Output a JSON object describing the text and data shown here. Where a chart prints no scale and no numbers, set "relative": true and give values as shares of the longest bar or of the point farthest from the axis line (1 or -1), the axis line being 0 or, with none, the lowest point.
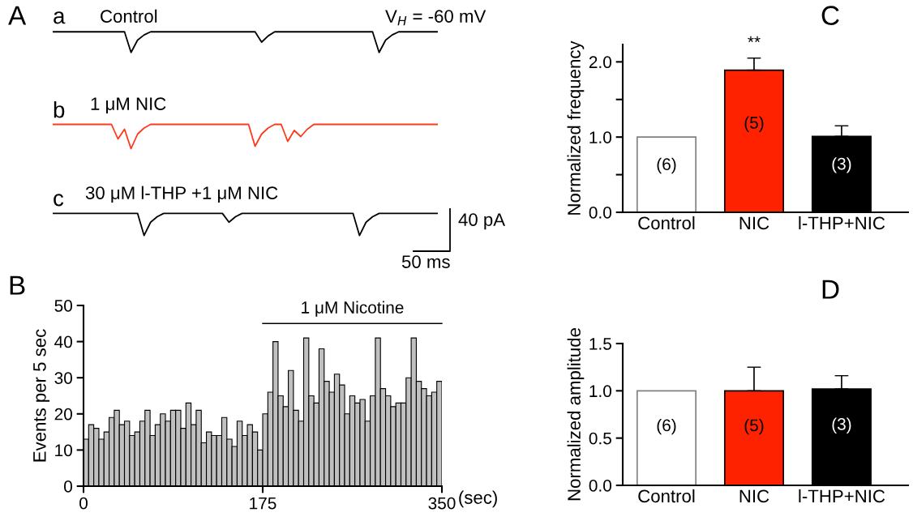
{
  "chart_data": [
    {
      "type": "other",
      "title": "A",
      "annotations": [
        "a",
        "Control",
        "V$_{H}$ = -60 mV",
        "b",
        "1 μM NIC",
        "c",
        "30 μM l-THP +1 μM NIC",
        "40 pA",
        "50 ms"
      ]
    },
    {
      "type": "line",
      "relative": true,
      "color": "#000000",
      "categories": [
        null,
        null,
        null,
        null,
        null,
        null,
        null,
        null,
        null,
        null,
        null,
        null,
        null,
        null,
        null,
        null,
        null,
        null,
        null,
        null,
        null,
        null,
        null,
        null,
        null,
        null,
        null,
        null,
        null,
        null,
        null,
        null,
        null,
        null,
        null,
        null,
        null,
        null,
        null,
        null,
        null,
        null,
        null,
        null,
        null,
        null,
        null,
        null,
        null,
        null,
        null,
        null,
        null,
        null,
        null,
        null,
        null,
        null,
        null,
        null
      ],
      "values": [
        1,
        1,
        1,
        1,
        1,
        1,
        1,
        1,
        1,
        1,
        1,
        1,
        0,
        0.6,
        0.85,
        1,
        1,
        1,
        1,
        1,
        1,
        1,
        1,
        1,
        1,
        1,
        1,
        1,
        1,
        1,
        1,
        1,
        0.5,
        0.8,
        1,
        1,
        1,
        1,
        1,
        1,
        1,
        1,
        1,
        1,
        1,
        1,
        1,
        1,
        1,
        1,
        0,
        0.6,
        0.85,
        1,
        1,
        1,
        1,
        1,
        1,
        1
      ]
    },
    {
      "type": "line",
      "relative": true,
      "color": "#ff3a1a",
      "categories": [
        null,
        null,
        null,
        null,
        null,
        null,
        null,
        null,
        null,
        null,
        null,
        null,
        null,
        null,
        null,
        null,
        null,
        null,
        null,
        null,
        null,
        null,
        null,
        null,
        null,
        null,
        null,
        null,
        null,
        null,
        null,
        null,
        null,
        null,
        null,
        null,
        null,
        null,
        null,
        null,
        null,
        null,
        null,
        null,
        null,
        null,
        null,
        null,
        null,
        null,
        null,
        null,
        null,
        null,
        null,
        null,
        null,
        null,
        null,
        null
      ],
      "values": [
        1,
        1,
        1,
        1,
        1,
        1,
        1,
        1,
        1,
        1,
        0.4,
        0.8,
        0,
        0.6,
        0.85,
        1,
        1,
        1,
        1,
        1,
        1,
        1,
        1,
        1,
        1,
        1,
        1,
        1,
        1,
        1,
        1,
        0.1,
        0.6,
        0.85,
        1,
        1,
        0.3,
        0.75,
        0.5,
        0.8,
        1,
        1,
        1,
        1,
        1,
        1,
        1,
        1,
        1,
        1,
        1,
        1,
        1,
        1,
        1,
        1,
        1,
        1,
        1,
        1
      ]
    },
    {
      "type": "line",
      "relative": true,
      "color": "#000000",
      "categories": [
        null,
        null,
        null,
        null,
        null,
        null,
        null,
        null,
        null,
        null,
        null,
        null,
        null,
        null,
        null,
        null,
        null,
        null,
        null,
        null,
        null,
        null,
        null,
        null,
        null,
        null,
        null,
        null,
        null,
        null,
        null,
        null,
        null,
        null,
        null,
        null,
        null,
        null,
        null,
        null,
        null,
        null,
        null,
        null,
        null,
        null,
        null,
        null,
        null,
        null,
        null,
        null,
        null,
        null,
        null,
        null,
        null,
        null,
        null,
        null
      ],
      "values": [
        1,
        1,
        1,
        1,
        1,
        1,
        1,
        1,
        1,
        1,
        1,
        1,
        1,
        1,
        0,
        0.6,
        0.85,
        1,
        1,
        1,
        1,
        1,
        1,
        1,
        1,
        1,
        1,
        0.6,
        0.85,
        1,
        1,
        1,
        1,
        1,
        1,
        1,
        1,
        1,
        1,
        1,
        1,
        1,
        1,
        1,
        1,
        1,
        1,
        0,
        0.6,
        0.85,
        1,
        1,
        1,
        1,
        1,
        1,
        1,
        1,
        1,
        1
      ]
    },
    {
      "type": "histogram",
      "title": "B",
      "ylabel": "Events per 5 sec",
      "xlabel": "(sec)",
      "color": "#c0c0c0",
      "bins": [
        0,
        5,
        10,
        15,
        20,
        25,
        30,
        35,
        40,
        45,
        50,
        55,
        60,
        65,
        70,
        75,
        80,
        85,
        90,
        95,
        100,
        105,
        110,
        115,
        120,
        125,
        130,
        135,
        140,
        145,
        150,
        155,
        160,
        165,
        170,
        175,
        180,
        185,
        190,
        195,
        200,
        205,
        210,
        215,
        220,
        225,
        230,
        235,
        240,
        245,
        250,
        255,
        260,
        265,
        270,
        275,
        280,
        285,
        290,
        295,
        300,
        305,
        310,
        315,
        320,
        325,
        330,
        335,
        340,
        345,
        350
      ],
      "values": [
        13,
        17,
        16,
        13,
        15,
        19,
        21,
        17,
        18,
        14,
        15,
        18,
        21,
        14,
        17,
        20,
        18,
        21,
        21,
        16,
        23,
        17,
        21,
        12,
        15,
        14,
        14,
        19,
        13,
        11,
        18,
        14,
        17,
        15,
        10,
        20,
        26,
        40,
        25,
        22,
        32,
        21,
        18,
        41,
        25,
        23,
        38,
        29,
        26,
        31,
        28,
        20,
        25,
        23,
        24,
        18,
        25,
        41,
        27,
        25,
        22,
        23,
        23,
        30,
        41,
        29,
        27,
        25,
        26,
        29
      ],
      "xlim": [
        0,
        350
      ],
      "xticks": [
        0,
        175,
        350
      ],
      "ylim": [
        0,
        50
      ],
      "yticks": [
        0,
        10,
        20,
        30,
        40,
        50
      ],
      "series": [
        {
          "type": "line",
          "name": "1 μM Nicotine",
          "color": "#000000",
          "x": [
            175,
            350
          ],
          "values": [
            45,
            45
          ]
        }
      ]
    },
    {
      "type": "bar",
      "title": "C",
      "ylabel": "Normalized frequency",
      "categories": [
        "Control",
        "NIC",
        "l-THP+NIC"
      ],
      "values": [
        1.0,
        1.89,
        1.01
      ],
      "errors": [
        null,
        0.16,
        0.14
      ],
      "colors": [
        "#ffffff",
        "#ff2200",
        "#000000"
      ],
      "ylim": [
        0,
        2.23
      ],
      "yticks": [
        {
          "value": 0,
          "label": "0.0"
        },
        {
          "value": 0.5,
          "label": null
        },
        {
          "value": 1.0,
          "label": "1.0"
        },
        {
          "value": 1.5,
          "label": null
        },
        {
          "value": 2.0,
          "label": "2.0"
        }
      ],
      "annotations": [
        "**",
        "(6)",
        "(5)",
        "(3)"
      ]
    },
    {
      "type": "bar",
      "title": "D",
      "ylabel": "Normalized amplitude",
      "categories": [
        "Control",
        "NIC",
        "l-THP+NIC"
      ],
      "values": [
        1.0,
        1.0,
        1.02
      ],
      "errors": [
        null,
        0.25,
        0.14
      ],
      "colors": [
        "#ffffff",
        "#ff2200",
        "#000000"
      ],
      "ylim": [
        0,
        1.5
      ],
      "yticks": [
        {
          "value": 0,
          "label": "0.0"
        },
        0.5,
        {
          "value": 1.0,
          "label": "1.0"
        },
        1.5
      ],
      "annotations": [
        "(6)",
        "(5)",
        "(3)"
      ]
    }
  ]
}
